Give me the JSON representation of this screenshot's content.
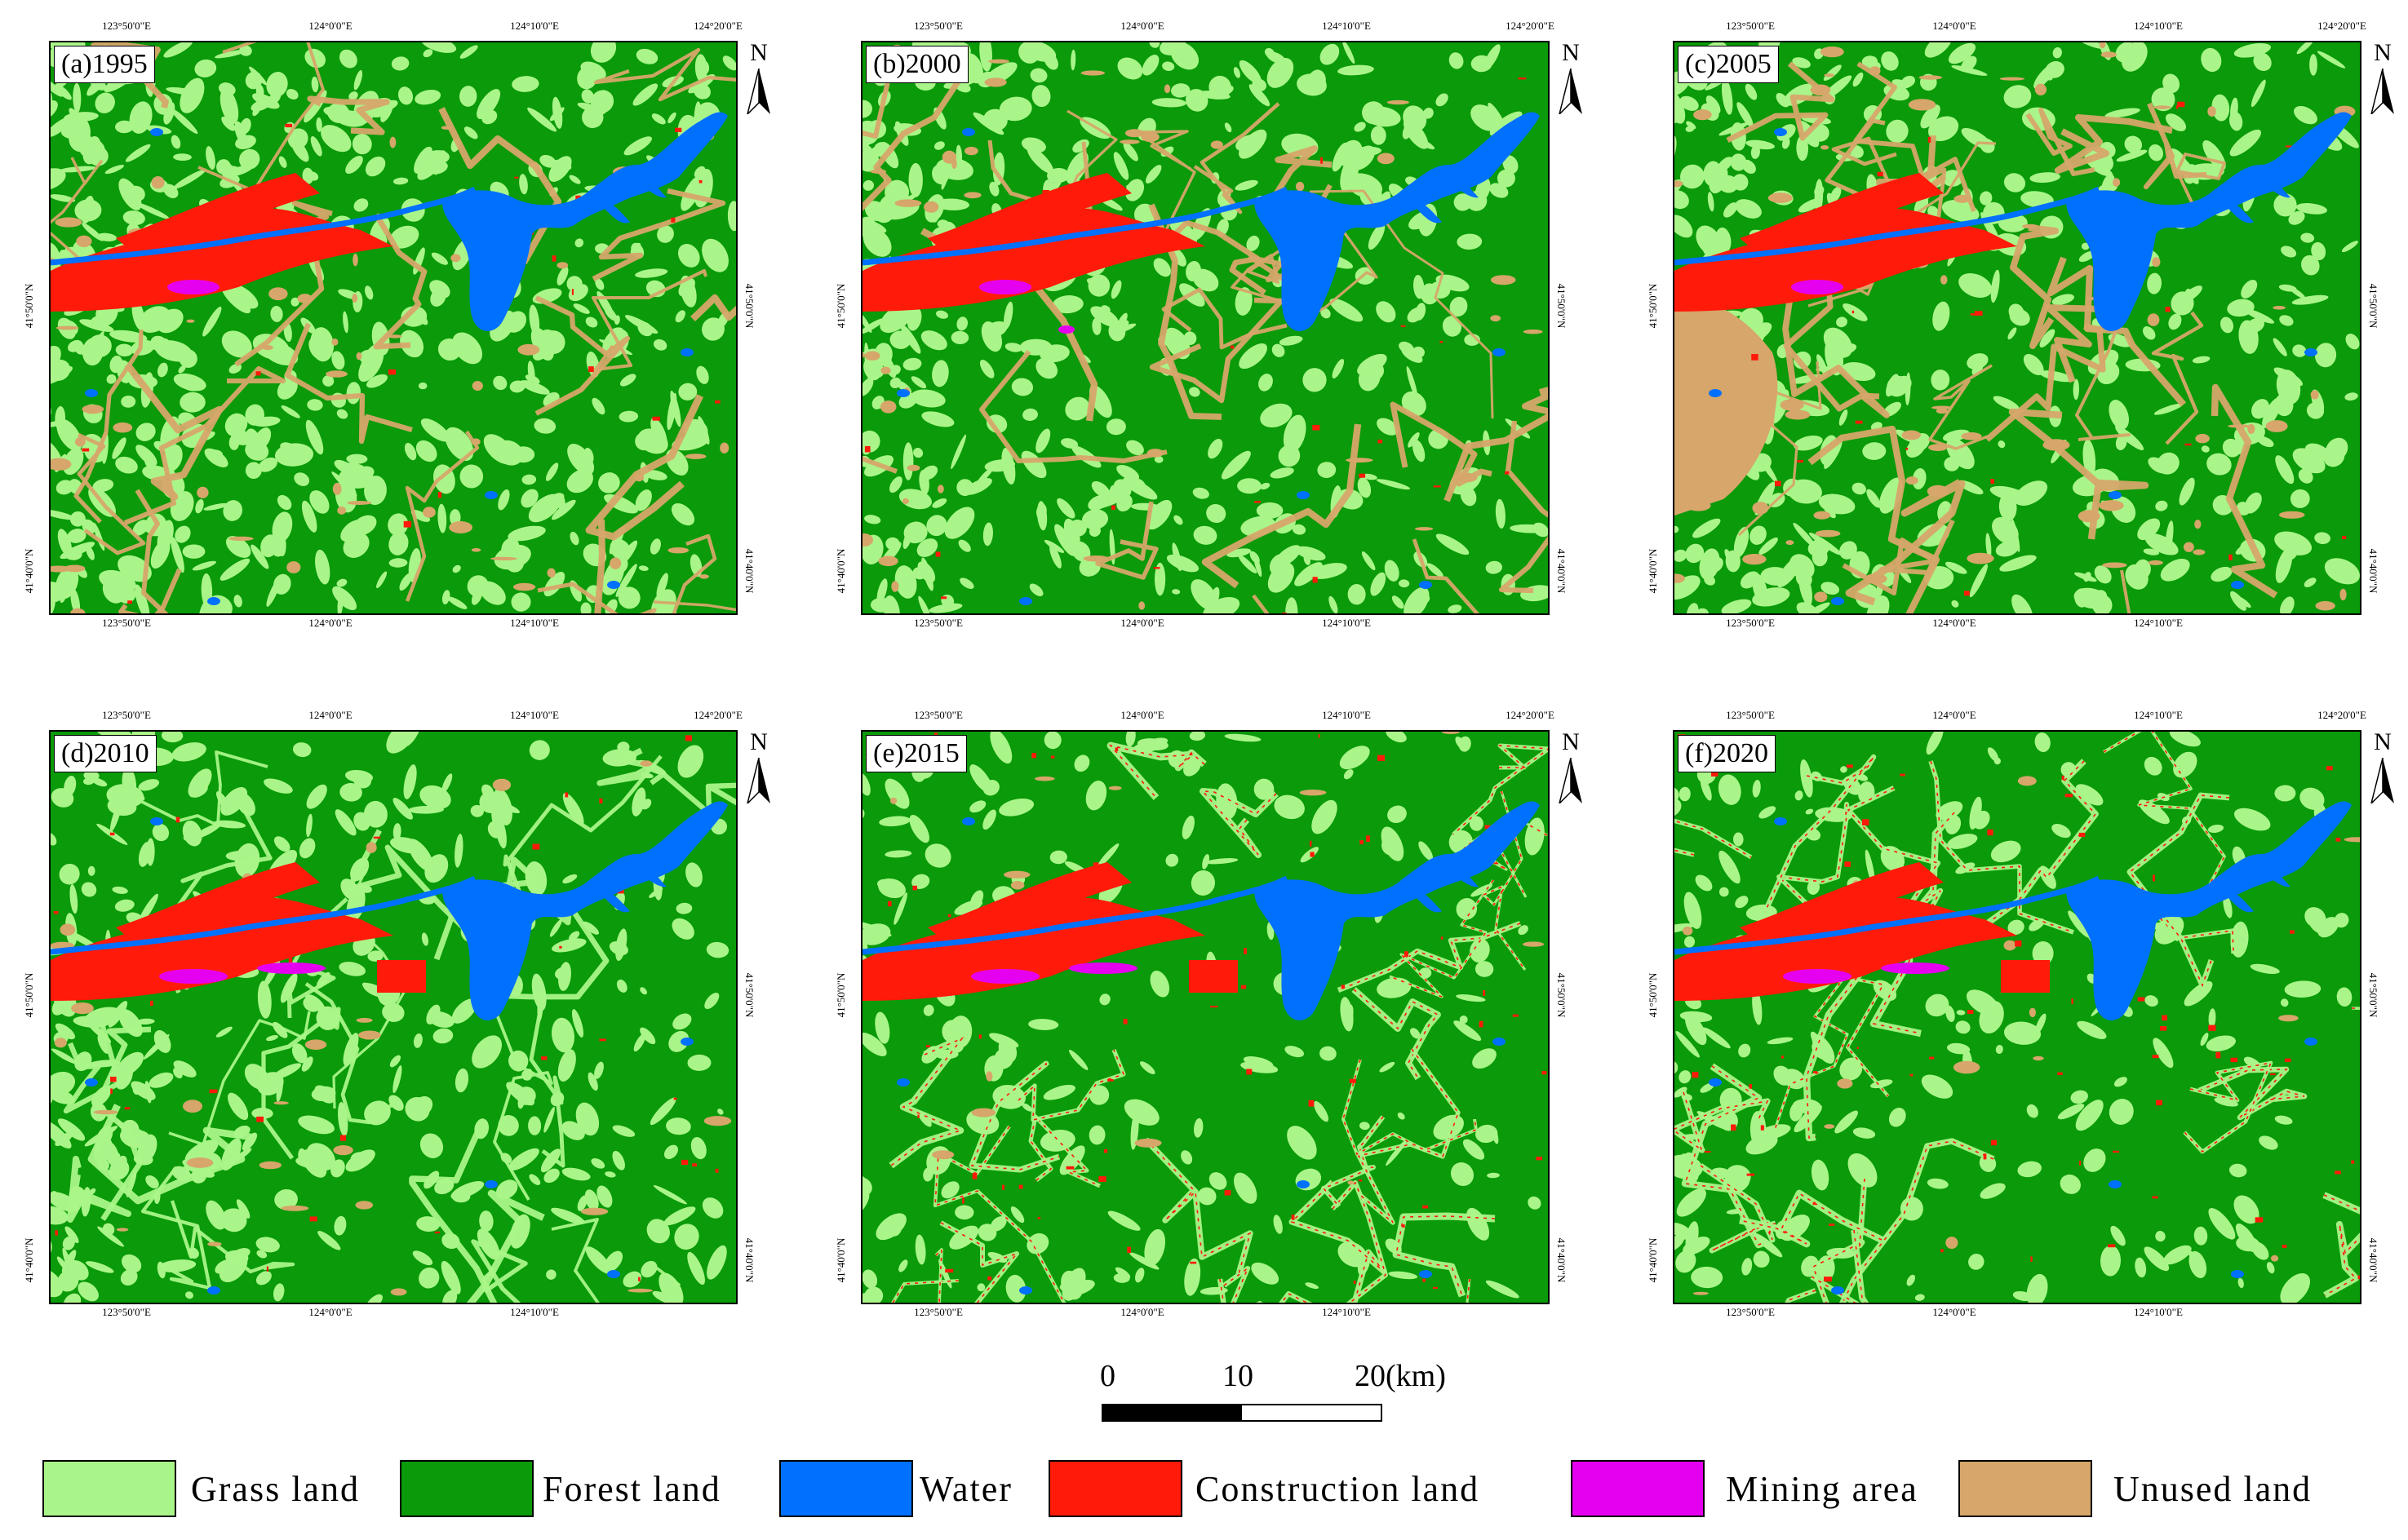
{
  "colors": {
    "grass_land": "#aaf589",
    "forest_land": "#0a9a0a",
    "water": "#0070ff",
    "construction_land": "#ff1a0a",
    "mining_area": "#e600f0",
    "unused_land": "#d6a66a"
  },
  "panels": [
    {
      "label": "(a)1995",
      "top_ticks": [
        "123°50'0\"E",
        "124°0'0\"E",
        "124°10'0\"E",
        "124°20'0\"E"
      ],
      "bottom_ticks": [
        "123°50'0\"E",
        "124°0'0\"E",
        "124°10'0\"E"
      ],
      "left_ticks": [
        "41°50'0\"N",
        "41°40'0\"N"
      ],
      "right_ticks": [
        "41°50'0\"N",
        "41°40'0\"N"
      ],
      "north": "N"
    },
    {
      "label": "(b)2000",
      "top_ticks": [
        "123°50'0\"E",
        "124°0'0\"E",
        "124°10'0\"E",
        "124°20'0\"E"
      ],
      "bottom_ticks": [
        "123°50'0\"E",
        "124°0'0\"E",
        "124°10'0\"E"
      ],
      "left_ticks": [
        "41°50'0\"N",
        "41°40'0\"N"
      ],
      "right_ticks": [
        "41°50'0\"N",
        "41°40'0\"N"
      ],
      "north": "N"
    },
    {
      "label": "(c)2005",
      "top_ticks": [
        "123°50'0\"E",
        "124°0'0\"E",
        "124°10'0\"E",
        "124°20'0\"E"
      ],
      "bottom_ticks": [
        "123°50'0\"E",
        "124°0'0\"E",
        "124°10'0\"E"
      ],
      "left_ticks": [
        "41°50'0\"N",
        "41°40'0\"N"
      ],
      "right_ticks": [
        "41°50'0\"N",
        "41°40'0\"N"
      ],
      "north": "N"
    },
    {
      "label": "(d)2010",
      "top_ticks": [
        "123°50'0\"E",
        "124°0'0\"E",
        "124°10'0\"E",
        "124°20'0\"E"
      ],
      "bottom_ticks": [
        "123°50'0\"E",
        "124°0'0\"E",
        "124°10'0\"E"
      ],
      "left_ticks": [
        "41°50'0\"N",
        "41°40'0\"N"
      ],
      "right_ticks": [
        "41°50'0\"N",
        "41°40'0\"N"
      ],
      "north": "N"
    },
    {
      "label": "(e)2015",
      "top_ticks": [
        "123°50'0\"E",
        "124°0'0\"E",
        "124°10'0\"E",
        "124°20'0\"E"
      ],
      "bottom_ticks": [
        "123°50'0\"E",
        "124°0'0\"E",
        "124°10'0\"E"
      ],
      "left_ticks": [
        "41°50'0\"N",
        "41°40'0\"N"
      ],
      "right_ticks": [
        "41°50'0\"N",
        "41°40'0\"N"
      ],
      "north": "N"
    },
    {
      "label": "(f)2020",
      "top_ticks": [
        "123°50'0\"E",
        "124°0'0\"E",
        "124°10'0\"E",
        "124°20'0\"E"
      ],
      "bottom_ticks": [
        "123°50'0\"E",
        "124°0'0\"E",
        "124°10'0\"E"
      ],
      "left_ticks": [
        "41°50'0\"N",
        "41°40'0\"N"
      ],
      "right_ticks": [
        "41°50'0\"N",
        "41°40'0\"N"
      ],
      "north": "N"
    }
  ],
  "scale_bar": {
    "labels": [
      "0",
      "10",
      "20(km)"
    ]
  },
  "legend": [
    {
      "label": "Grass land",
      "color": "#aaf589"
    },
    {
      "label": "Forest land",
      "color": "#0a9a0a"
    },
    {
      "label": "Water",
      "color": "#0070ff"
    },
    {
      "label": "Construction land",
      "color": "#ff1a0a"
    },
    {
      "label": "Mining area",
      "color": "#e600f0"
    },
    {
      "label": "Unused land",
      "color": "#d6a66a"
    }
  ]
}
